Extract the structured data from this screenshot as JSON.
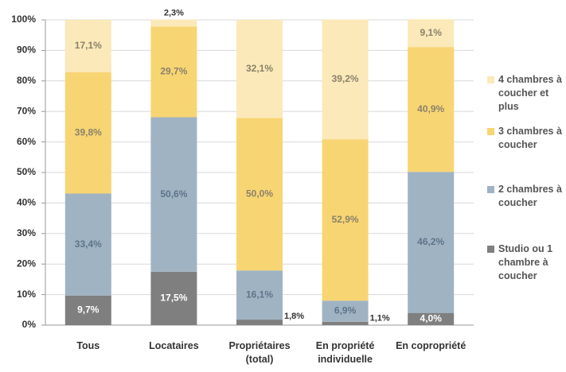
{
  "chart_data": {
    "type": "stacked_bar",
    "categories": [
      "Tous",
      "Locataires",
      "Propriétaires (total)",
      "En propriété individuelle",
      "En copropriété"
    ],
    "series": [
      {
        "name": "Studio ou 1 chambre à coucher",
        "color": "#7f7f7f",
        "values": [
          9.7,
          17.5,
          1.8,
          1.1,
          4.0
        ],
        "value_labels": [
          "9,7%",
          "17,5%",
          "1,8%",
          "1,1%",
          "4,0%"
        ]
      },
      {
        "name": "2 chambres à coucher",
        "color": "#9fb3c3",
        "values": [
          33.4,
          50.6,
          16.1,
          6.9,
          46.2
        ],
        "value_labels": [
          "33,4%",
          "50,6%",
          "16,1%",
          "6,9%",
          "46,2%"
        ]
      },
      {
        "name": "3 chambres à coucher",
        "color": "#f8d573",
        "values": [
          39.8,
          29.7,
          50.0,
          52.9,
          40.9
        ],
        "value_labels": [
          "39,8%",
          "29,7%",
          "50,0%",
          "52,9%",
          "40,9%"
        ]
      },
      {
        "name": "4 chambres à coucher et plus",
        "color": "#fbe9b9",
        "values": [
          17.1,
          2.3,
          32.1,
          39.2,
          9.1
        ],
        "value_labels": [
          "17,1%",
          "2,3%",
          "32,1%",
          "39,2%",
          "9,1%"
        ]
      }
    ],
    "ylim": [
      0,
      100
    ],
    "yticks": [
      {
        "value": 0,
        "label": "0%"
      },
      {
        "value": 10,
        "label": "10%"
      },
      {
        "value": 20,
        "label": "20%"
      },
      {
        "value": 30,
        "label": "30%"
      },
      {
        "value": 40,
        "label": "40%"
      },
      {
        "value": 50,
        "label": "50%"
      },
      {
        "value": 60,
        "label": "60%"
      },
      {
        "value": 70,
        "label": "70%"
      },
      {
        "value": 80,
        "label": "80%"
      },
      {
        "value": 90,
        "label": "90%"
      },
      {
        "value": 100,
        "label": "100%"
      }
    ],
    "grid": true,
    "legend": "right"
  }
}
